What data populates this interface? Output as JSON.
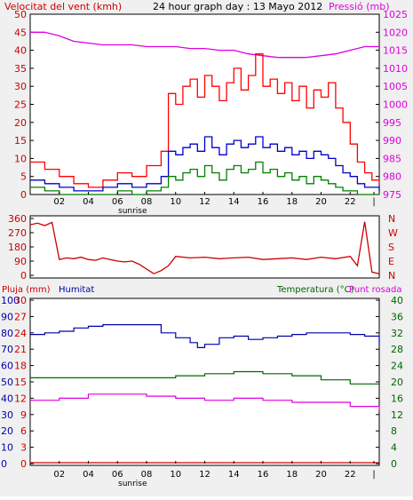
{
  "chart_data": [
    {
      "type": "line",
      "title": "24 hour graph day : 13 Mayo 2012",
      "left_axis_label": "Velocitat del vent (kmh)",
      "right_axis_label": "Pressió (mb)",
      "x_ticks": [
        "02",
        "04",
        "06",
        "08",
        "10",
        "12",
        "14",
        "16",
        "18",
        "20",
        "22",
        "|"
      ],
      "sunrise_label": "sunrise",
      "ylim_left": [
        0,
        50
      ],
      "ylim_right": [
        975,
        1025
      ],
      "yticks_left": [
        0,
        5,
        10,
        15,
        20,
        25,
        30,
        35,
        40,
        45,
        50
      ],
      "yticks_right": [
        975,
        980,
        985,
        990,
        995,
        1000,
        1005,
        1010,
        1015,
        1020,
        1025
      ],
      "colors": {
        "gust": "#ff0000",
        "avg": "#0000cc",
        "min": "#008000",
        "pressure": "#dd00dd"
      },
      "series": [
        {
          "role": "pressure",
          "axis": "right",
          "x": [
            0,
            1,
            2,
            3,
            4,
            5,
            6,
            7,
            8,
            9,
            10,
            11,
            12,
            13,
            14,
            15,
            16,
            17,
            18,
            19,
            20,
            21,
            22,
            23,
            24
          ],
          "values": [
            1020,
            1020,
            1019,
            1017.5,
            1017,
            1016.5,
            1016.5,
            1016.5,
            1016,
            1016,
            1016,
            1015.5,
            1015.5,
            1015,
            1015,
            1014,
            1013.5,
            1013,
            1013,
            1013,
            1013.5,
            1014,
            1015,
            1016,
            1016
          ]
        },
        {
          "role": "gust",
          "axis": "left",
          "x": [
            0,
            1,
            2,
            3,
            4,
            5,
            6,
            7,
            8,
            9,
            9.5,
            10,
            10.5,
            11,
            11.5,
            12,
            12.5,
            13,
            13.5,
            14,
            14.5,
            15,
            15.5,
            16,
            16.5,
            17,
            17.5,
            18,
            18.5,
            19,
            19.5,
            20,
            20.5,
            21,
            21.5,
            22,
            22.5,
            23,
            23.5,
            24
          ],
          "values": [
            9,
            7,
            5,
            3,
            2,
            4,
            6,
            5,
            8,
            12,
            28,
            25,
            30,
            32,
            27,
            33,
            30,
            26,
            31,
            35,
            29,
            33,
            39,
            30,
            32,
            28,
            31,
            26,
            30,
            24,
            29,
            27,
            31,
            24,
            20,
            14,
            9,
            6,
            4,
            3
          ]
        },
        {
          "role": "avg",
          "axis": "left",
          "x": [
            0,
            1,
            2,
            3,
            4,
            5,
            6,
            7,
            8,
            9,
            9.5,
            10,
            10.5,
            11,
            11.5,
            12,
            12.5,
            13,
            13.5,
            14,
            14.5,
            15,
            15.5,
            16,
            16.5,
            17,
            17.5,
            18,
            18.5,
            19,
            19.5,
            20,
            20.5,
            21,
            21.5,
            22,
            22.5,
            23,
            23.5,
            24
          ],
          "values": [
            4,
            3,
            2,
            1,
            1,
            2,
            3,
            2,
            3,
            5,
            12,
            11,
            13,
            14,
            12,
            16,
            13,
            11,
            14,
            15,
            13,
            14,
            16,
            13,
            14,
            12,
            13,
            11,
            12,
            10,
            12,
            11,
            10,
            8,
            6,
            5,
            3,
            2,
            2,
            1
          ]
        },
        {
          "role": "min",
          "axis": "left",
          "x": [
            0,
            1,
            2,
            3,
            4,
            5,
            6,
            7,
            8,
            9,
            9.5,
            10,
            10.5,
            11,
            11.5,
            12,
            12.5,
            13,
            13.5,
            14,
            14.5,
            15,
            15.5,
            16,
            16.5,
            17,
            17.5,
            18,
            18.5,
            19,
            19.5,
            20,
            20.5,
            21,
            21.5,
            22,
            22.5,
            23,
            23.5,
            24
          ],
          "values": [
            2,
            1,
            0,
            0,
            0,
            0,
            1,
            0,
            1,
            2,
            5,
            4,
            6,
            7,
            5,
            8,
            6,
            4,
            7,
            8,
            6,
            7,
            9,
            6,
            7,
            5,
            6,
            4,
            5,
            3,
            5,
            4,
            3,
            2,
            1,
            1,
            0,
            0,
            0,
            0
          ]
        }
      ]
    },
    {
      "type": "line",
      "title": "",
      "left_ticks": [
        "360",
        "270",
        "180",
        "90",
        "0"
      ],
      "right_ticks": [
        "N",
        "W",
        "S",
        "E",
        "N"
      ],
      "ylim": [
        0,
        360
      ],
      "color": "#cc0000",
      "series": [
        {
          "role": "direction",
          "x": [
            0,
            0.5,
            1,
            1.5,
            2,
            2.5,
            3,
            3.5,
            4,
            4.5,
            5,
            5.5,
            6,
            6.5,
            7,
            7.5,
            8,
            8.5,
            9,
            9.5,
            10,
            11,
            12,
            13,
            14,
            15,
            16,
            17,
            18,
            19,
            20,
            21,
            22,
            22.5,
            23,
            23.5,
            24
          ],
          "values": [
            320,
            330,
            315,
            335,
            100,
            110,
            105,
            115,
            100,
            95,
            110,
            100,
            90,
            85,
            90,
            70,
            40,
            10,
            30,
            60,
            120,
            110,
            115,
            105,
            110,
            115,
            100,
            105,
            110,
            100,
            115,
            105,
            120,
            60,
            340,
            20,
            10
          ]
        }
      ]
    },
    {
      "type": "line",
      "title": "",
      "left_axis_label_1": "Pluja (mm)",
      "left_axis_label_2": "Humitat",
      "right_axis_label_1": "Temperatura (°C)",
      "right_axis_label_2": "Punt rosada",
      "yticks_pluja": [
        "100",
        "90",
        "80",
        "70",
        "60",
        "50",
        "40",
        "30",
        "20",
        "10",
        "0"
      ],
      "yticks_hum": [
        "30",
        "27",
        "24",
        "21",
        "18",
        "15",
        "12",
        "9",
        "6",
        "3",
        "0"
      ],
      "yticks_temp": [
        "40",
        "36",
        "32",
        "28",
        "24",
        "20",
        "16",
        "12",
        "8",
        "4",
        "0"
      ],
      "ylim_temp": [
        0,
        40
      ],
      "colors": {
        "humidity": "#0000aa",
        "temperature": "#006600",
        "dewpoint": "#dd00dd",
        "rain": "#cc0000"
      },
      "series": [
        {
          "role": "humidity",
          "x": [
            0,
            1,
            2,
            3,
            4,
            5,
            6,
            7,
            8,
            9,
            10,
            11,
            11.5,
            12,
            13,
            14,
            15,
            16,
            17,
            18,
            19,
            20,
            21,
            22,
            23,
            24
          ],
          "values": [
            79,
            80,
            81,
            83,
            84,
            85,
            85,
            85,
            85,
            80,
            77,
            74,
            71,
            73,
            77,
            78,
            76,
            77,
            78,
            79,
            80,
            80,
            80,
            79,
            78,
            72
          ]
        },
        {
          "role": "temperature",
          "axis": "right",
          "x": [
            0,
            2,
            4,
            6,
            8,
            10,
            12,
            14,
            16,
            18,
            20,
            22,
            24
          ],
          "values": [
            21,
            21,
            21,
            21,
            21,
            21.5,
            22,
            22.5,
            22,
            21.5,
            20.5,
            19.5,
            19.5
          ]
        },
        {
          "role": "dewpoint",
          "axis": "right",
          "x": [
            0,
            2,
            4,
            6,
            8,
            10,
            12,
            14,
            16,
            18,
            20,
            22,
            24
          ],
          "values": [
            15.5,
            16,
            17,
            17,
            16.5,
            16,
            15.5,
            16,
            15.5,
            15,
            15,
            14,
            13
          ]
        },
        {
          "role": "rain",
          "x": [
            0,
            24
          ],
          "values": [
            0,
            0
          ]
        }
      ]
    }
  ]
}
